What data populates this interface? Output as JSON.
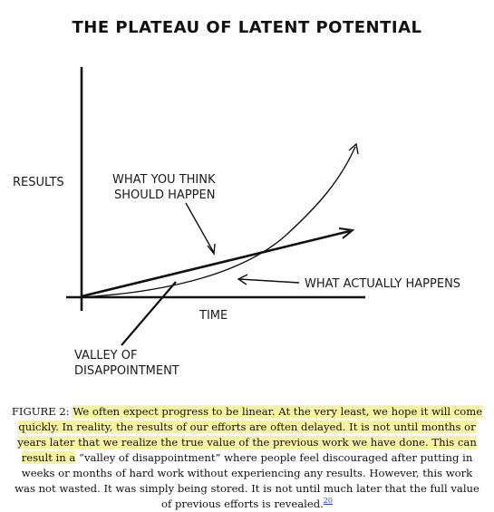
{
  "figure": {
    "title": "THE PLATEAU OF LATENT POTENTIAL",
    "labels": {
      "results": "RESULTS",
      "time": "TIME",
      "expect_line1": "WHAT YOU THINK",
      "expect_line2": "SHOULD HAPPEN",
      "actual": "WHAT ACTUALLY HAPPENS",
      "valley_line1": "VALLEY OF",
      "valley_line2": "DISAPPOINTMENT"
    }
  },
  "caption": {
    "label": "FIGURE 2: ",
    "highlighted": "We often expect progress to be linear. At the very least, we hope it will come quickly. In reality, the results of our efforts are often delayed. It is not until months or years later that we realize the true value of the previous work we have done. This can result in a",
    "rest": " “valley of disappointment” where people feel discouraged after putting in weeks or months of hard work without experiencing any results. However, this work was not wasted. It was simply being stored. It is not until much later that the full value of previous efforts is revealed.",
    "footnote": "20"
  }
}
